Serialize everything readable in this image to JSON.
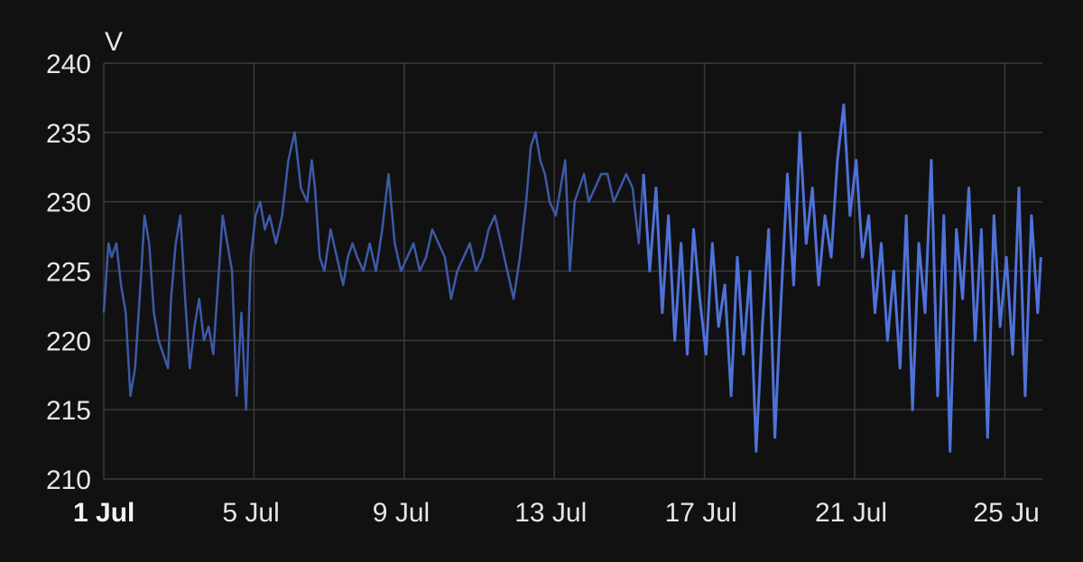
{
  "chart_data": {
    "type": "line",
    "title": "",
    "xlabel": "",
    "ylabel": "V",
    "ylim": [
      210,
      240
    ],
    "xlim": [
      "2024-07-01",
      "2024-07-26T00:00"
    ],
    "grid": true,
    "x_ticks": [
      {
        "date": "2024-07-01",
        "label": "1 Jul",
        "bold": true
      },
      {
        "date": "2024-07-05",
        "label": "5 Jul",
        "bold": false
      },
      {
        "date": "2024-07-09",
        "label": "9 Jul",
        "bold": false
      },
      {
        "date": "2024-07-13",
        "label": "13 Jul",
        "bold": false
      },
      {
        "date": "2024-07-17",
        "label": "17 Jul",
        "bold": false
      },
      {
        "date": "2024-07-21",
        "label": "21 Jul",
        "bold": false
      },
      {
        "date": "2024-07-25",
        "label": "25 Ju",
        "bold": false
      }
    ],
    "y_ticks": [
      "210",
      "215",
      "220",
      "225",
      "230",
      "235",
      "240"
    ],
    "series": [
      {
        "color": "#3d5aa8",
        "x": [
          "2024-07-01T00:00",
          "2024-07-01T03:00",
          "2024-07-01T05:00",
          "2024-07-01T08:00",
          "2024-07-01T11:00",
          "2024-07-01T14:00",
          "2024-07-01T17:00",
          "2024-07-01T20:00",
          "2024-07-02T00:00",
          "2024-07-02T02:00",
          "2024-07-02T05:00",
          "2024-07-02T08:00",
          "2024-07-02T11:00",
          "2024-07-02T14:00",
          "2024-07-02T17:00",
          "2024-07-02T19:00",
          "2024-07-02T22:00",
          "2024-07-03T01:00",
          "2024-07-03T04:00",
          "2024-07-03T07:00",
          "2024-07-03T10:00",
          "2024-07-03T13:00",
          "2024-07-03T16:00",
          "2024-07-03T19:00",
          "2024-07-03T22:00",
          "2024-07-04T01:00",
          "2024-07-04T04:00",
          "2024-07-04T07:00",
          "2024-07-04T10:00",
          "2024-07-04T13:00",
          "2024-07-04T16:00",
          "2024-07-04T19:00",
          "2024-07-04T22:00",
          "2024-07-05T01:00",
          "2024-07-05T04:00",
          "2024-07-05T07:00",
          "2024-07-05T10:00",
          "2024-07-05T14:00",
          "2024-07-05T18:00",
          "2024-07-05T22:00",
          "2024-07-06T02:00",
          "2024-07-06T06:00",
          "2024-07-06T10:00",
          "2024-07-06T13:00",
          "2024-07-06T15:00",
          "2024-07-06T18:00",
          "2024-07-06T21:00",
          "2024-07-07T01:00",
          "2024-07-07T05:00",
          "2024-07-07T09:00",
          "2024-07-07T12:00",
          "2024-07-07T15:00",
          "2024-07-07T18:00",
          "2024-07-07T22:00",
          "2024-07-08T02:00",
          "2024-07-08T06:00",
          "2024-07-08T10:00",
          "2024-07-08T14:00",
          "2024-07-08T18:00",
          "2024-07-08T22:00",
          "2024-07-09T02:00",
          "2024-07-09T06:00",
          "2024-07-09T10:00",
          "2024-07-09T14:00",
          "2024-07-09T18:00",
          "2024-07-09T22:00",
          "2024-07-10T02:00",
          "2024-07-10T06:00",
          "2024-07-10T10:00",
          "2024-07-10T14:00",
          "2024-07-10T18:00",
          "2024-07-10T22:00",
          "2024-07-11T02:00",
          "2024-07-11T06:00",
          "2024-07-11T10:00",
          "2024-07-11T14:00",
          "2024-07-11T18:00",
          "2024-07-11T22:00",
          "2024-07-12T02:00",
          "2024-07-12T06:00",
          "2024-07-12T09:00",
          "2024-07-12T12:00",
          "2024-07-12T15:00",
          "2024-07-12T18:00",
          "2024-07-12T21:00",
          "2024-07-13T01:00",
          "2024-07-13T04:00",
          "2024-07-13T07:00",
          "2024-07-13T10:00",
          "2024-07-13T13:00",
          "2024-07-13T16:00",
          "2024-07-13T19:00",
          "2024-07-13T22:00",
          "2024-07-14T02:00",
          "2024-07-14T06:00",
          "2024-07-14T10:00",
          "2024-07-14T14:00",
          "2024-07-14T18:00",
          "2024-07-14T22:00",
          "2024-07-15T02:00",
          "2024-07-15T06:00",
          "2024-07-15T09:00"
        ],
        "y": [
          222,
          227,
          226,
          227,
          224,
          222,
          216,
          218,
          225,
          229,
          227,
          222,
          220,
          219,
          218,
          223,
          227,
          229,
          223,
          218,
          221,
          223,
          220,
          221,
          219,
          224,
          229,
          227,
          225,
          216,
          222,
          215,
          226,
          229,
          230,
          228,
          229,
          227,
          229,
          233,
          235,
          231,
          230,
          233,
          231,
          226,
          225,
          228,
          226,
          224,
          226,
          227,
          226,
          225,
          227,
          225,
          228,
          232,
          227,
          225,
          226,
          227,
          225,
          226,
          228,
          227,
          226,
          223,
          225,
          226,
          227,
          225,
          226,
          228,
          229,
          227,
          225,
          223,
          226,
          230,
          234,
          235,
          233,
          232,
          230,
          229,
          231,
          233,
          225,
          230,
          231,
          232,
          230,
          231,
          232,
          232,
          230,
          231,
          232,
          231,
          227,
          232
        ]
      },
      {
        "color": "#4f72d9",
        "x": [
          "2024-07-15T09:00",
          "2024-07-15T13:00",
          "2024-07-15T17:00",
          "2024-07-15T21:00",
          "2024-07-16T01:00",
          "2024-07-16T05:00",
          "2024-07-16T09:00",
          "2024-07-16T13:00",
          "2024-07-16T17:00",
          "2024-07-16T21:00",
          "2024-07-17T01:00",
          "2024-07-17T05:00",
          "2024-07-17T09:00",
          "2024-07-17T13:00",
          "2024-07-17T17:00",
          "2024-07-17T21:00",
          "2024-07-18T01:00",
          "2024-07-18T05:00",
          "2024-07-18T09:00",
          "2024-07-18T13:00",
          "2024-07-18T17:00",
          "2024-07-18T21:00",
          "2024-07-19T01:00",
          "2024-07-19T05:00",
          "2024-07-19T09:00",
          "2024-07-19T13:00",
          "2024-07-19T17:00",
          "2024-07-19T21:00",
          "2024-07-20T01:00",
          "2024-07-20T05:00",
          "2024-07-20T09:00",
          "2024-07-20T13:00",
          "2024-07-20T17:00",
          "2024-07-20T21:00",
          "2024-07-21T01:00",
          "2024-07-21T05:00",
          "2024-07-21T09:00",
          "2024-07-21T13:00",
          "2024-07-21T17:00",
          "2024-07-21T21:00",
          "2024-07-22T01:00",
          "2024-07-22T05:00",
          "2024-07-22T09:00",
          "2024-07-22T13:00",
          "2024-07-22T17:00",
          "2024-07-22T21:00",
          "2024-07-23T01:00",
          "2024-07-23T05:00",
          "2024-07-23T09:00",
          "2024-07-23T13:00",
          "2024-07-23T17:00",
          "2024-07-23T21:00",
          "2024-07-24T01:00",
          "2024-07-24T05:00",
          "2024-07-24T09:00",
          "2024-07-24T13:00",
          "2024-07-24T17:00",
          "2024-07-24T21:00",
          "2024-07-25T01:00",
          "2024-07-25T05:00",
          "2024-07-25T09:00",
          "2024-07-25T13:00",
          "2024-07-25T17:00",
          "2024-07-25T21:00",
          "2024-07-25T23:00"
        ],
        "y": [
          232,
          225,
          231,
          222,
          229,
          220,
          227,
          219,
          228,
          223,
          219,
          227,
          221,
          224,
          216,
          226,
          219,
          225,
          212,
          221,
          228,
          213,
          223,
          232,
          224,
          235,
          227,
          231,
          224,
          229,
          226,
          233,
          237,
          229,
          233,
          226,
          229,
          222,
          227,
          220,
          225,
          218,
          229,
          215,
          227,
          222,
          233,
          216,
          229,
          212,
          228,
          223,
          231,
          220,
          228,
          213,
          229,
          221,
          226,
          219,
          231,
          216,
          229,
          222,
          226
        ]
      }
    ]
  }
}
